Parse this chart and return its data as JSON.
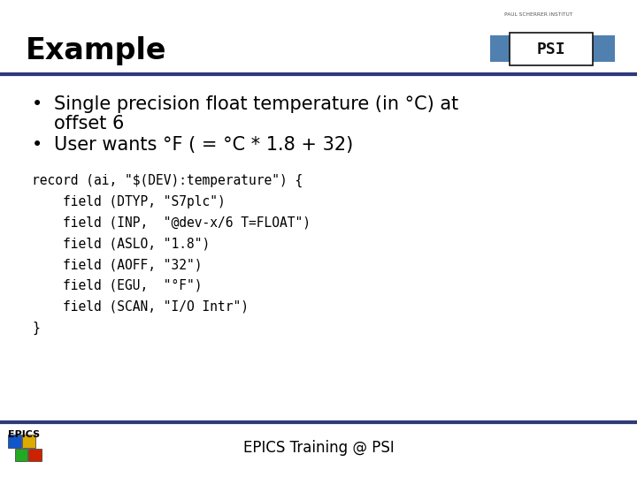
{
  "title": "Example",
  "bullet1_line1": "Single precision float temperature (in °C) at",
  "bullet1_line2": "offset 6",
  "bullet2": "User wants °F ( = °C * 1.8 + 32)",
  "code_lines": [
    "record (ai, \"$(DEV):temperature\") {",
    "    field (DTYP, \"S7plc\")",
    "    field (INP,  \"@dev-x/6 T=FLOAT\")",
    "    field (ASLO, \"1.8\")",
    "    field (AOFF, \"32\")",
    "    field (EGU,  \"°F\")",
    "    field (SCAN, \"I/O Intr\")",
    "}"
  ],
  "footer_text": "EPICS Training @ PSI",
  "bg_color": "#ffffff",
  "title_color": "#000000",
  "text_color": "#000000",
  "code_color": "#000000",
  "rule_color": "#2e3a7a",
  "footer_rule_color": "#2e3a7a"
}
